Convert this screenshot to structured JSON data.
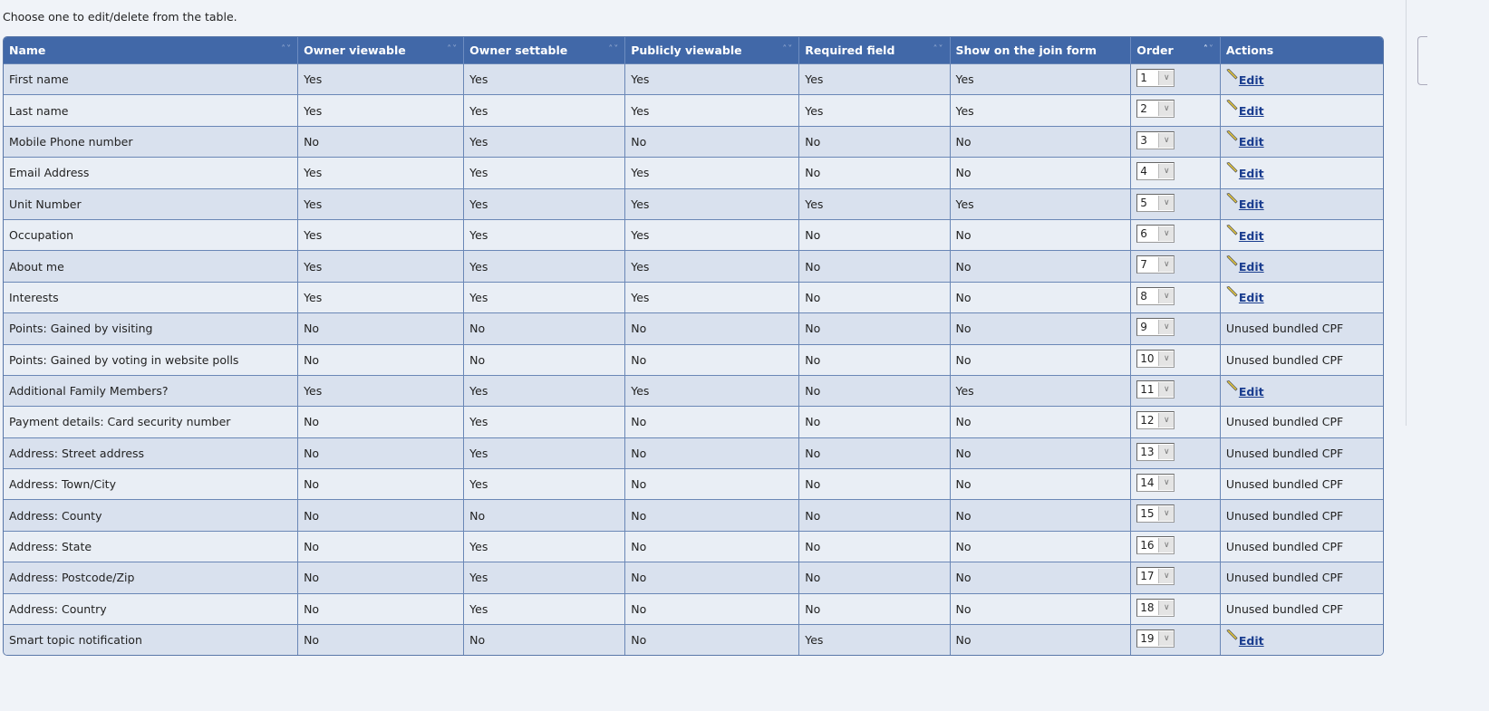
{
  "intro": "Choose one to edit/delete from the table.",
  "columns": [
    "Name",
    "Owner viewable",
    "Owner settable",
    "Publicly viewable",
    "Required field",
    "Show on the join form",
    "Order",
    "Actions"
  ],
  "sortable": [
    true,
    true,
    true,
    true,
    true,
    false,
    true,
    false
  ],
  "edit_label": "Edit",
  "rows": [
    [
      "First name",
      "Yes",
      "Yes",
      "Yes",
      "Yes",
      "Yes",
      "1",
      "Edit"
    ],
    [
      "Last name",
      "Yes",
      "Yes",
      "Yes",
      "Yes",
      "Yes",
      "2",
      "Edit"
    ],
    [
      "Mobile Phone number",
      "No",
      "Yes",
      "No",
      "No",
      "No",
      "3",
      "Edit"
    ],
    [
      "Email Address",
      "Yes",
      "Yes",
      "Yes",
      "No",
      "No",
      "4",
      "Edit"
    ],
    [
      "Unit Number",
      "Yes",
      "Yes",
      "Yes",
      "Yes",
      "Yes",
      "5",
      "Edit"
    ],
    [
      "Occupation",
      "Yes",
      "Yes",
      "Yes",
      "No",
      "No",
      "6",
      "Edit"
    ],
    [
      "About me",
      "Yes",
      "Yes",
      "Yes",
      "No",
      "No",
      "7",
      "Edit"
    ],
    [
      "Interests",
      "Yes",
      "Yes",
      "Yes",
      "No",
      "No",
      "8",
      "Edit"
    ],
    [
      "Points: Gained by visiting",
      "No",
      "No",
      "No",
      "No",
      "No",
      "9",
      "Unused bundled CPF"
    ],
    [
      "Points: Gained by voting in website polls",
      "No",
      "No",
      "No",
      "No",
      "No",
      "10",
      "Unused bundled CPF"
    ],
    [
      "Additional Family Members?",
      "Yes",
      "Yes",
      "Yes",
      "No",
      "Yes",
      "11",
      "Edit"
    ],
    [
      "Payment details: Card security number",
      "No",
      "Yes",
      "No",
      "No",
      "No",
      "12",
      "Unused bundled CPF"
    ],
    [
      "Address: Street address",
      "No",
      "Yes",
      "No",
      "No",
      "No",
      "13",
      "Unused bundled CPF"
    ],
    [
      "Address: Town/City",
      "No",
      "Yes",
      "No",
      "No",
      "No",
      "14",
      "Unused bundled CPF"
    ],
    [
      "Address: County",
      "No",
      "No",
      "No",
      "No",
      "No",
      "15",
      "Unused bundled CPF"
    ],
    [
      "Address: State",
      "No",
      "Yes",
      "No",
      "No",
      "No",
      "16",
      "Unused bundled CPF"
    ],
    [
      "Address: Postcode/Zip",
      "No",
      "Yes",
      "No",
      "No",
      "No",
      "17",
      "Unused bundled CPF"
    ],
    [
      "Address: Country",
      "No",
      "Yes",
      "No",
      "No",
      "No",
      "18",
      "Unused bundled CPF"
    ],
    [
      "Smart topic notification",
      "No",
      "No",
      "No",
      "Yes",
      "No",
      "19",
      "Edit"
    ]
  ],
  "colors": {
    "header": "#4168a8",
    "row_odd": "#d9e1ee",
    "row_even": "#e9eef5",
    "link": "#1a3d8f"
  }
}
